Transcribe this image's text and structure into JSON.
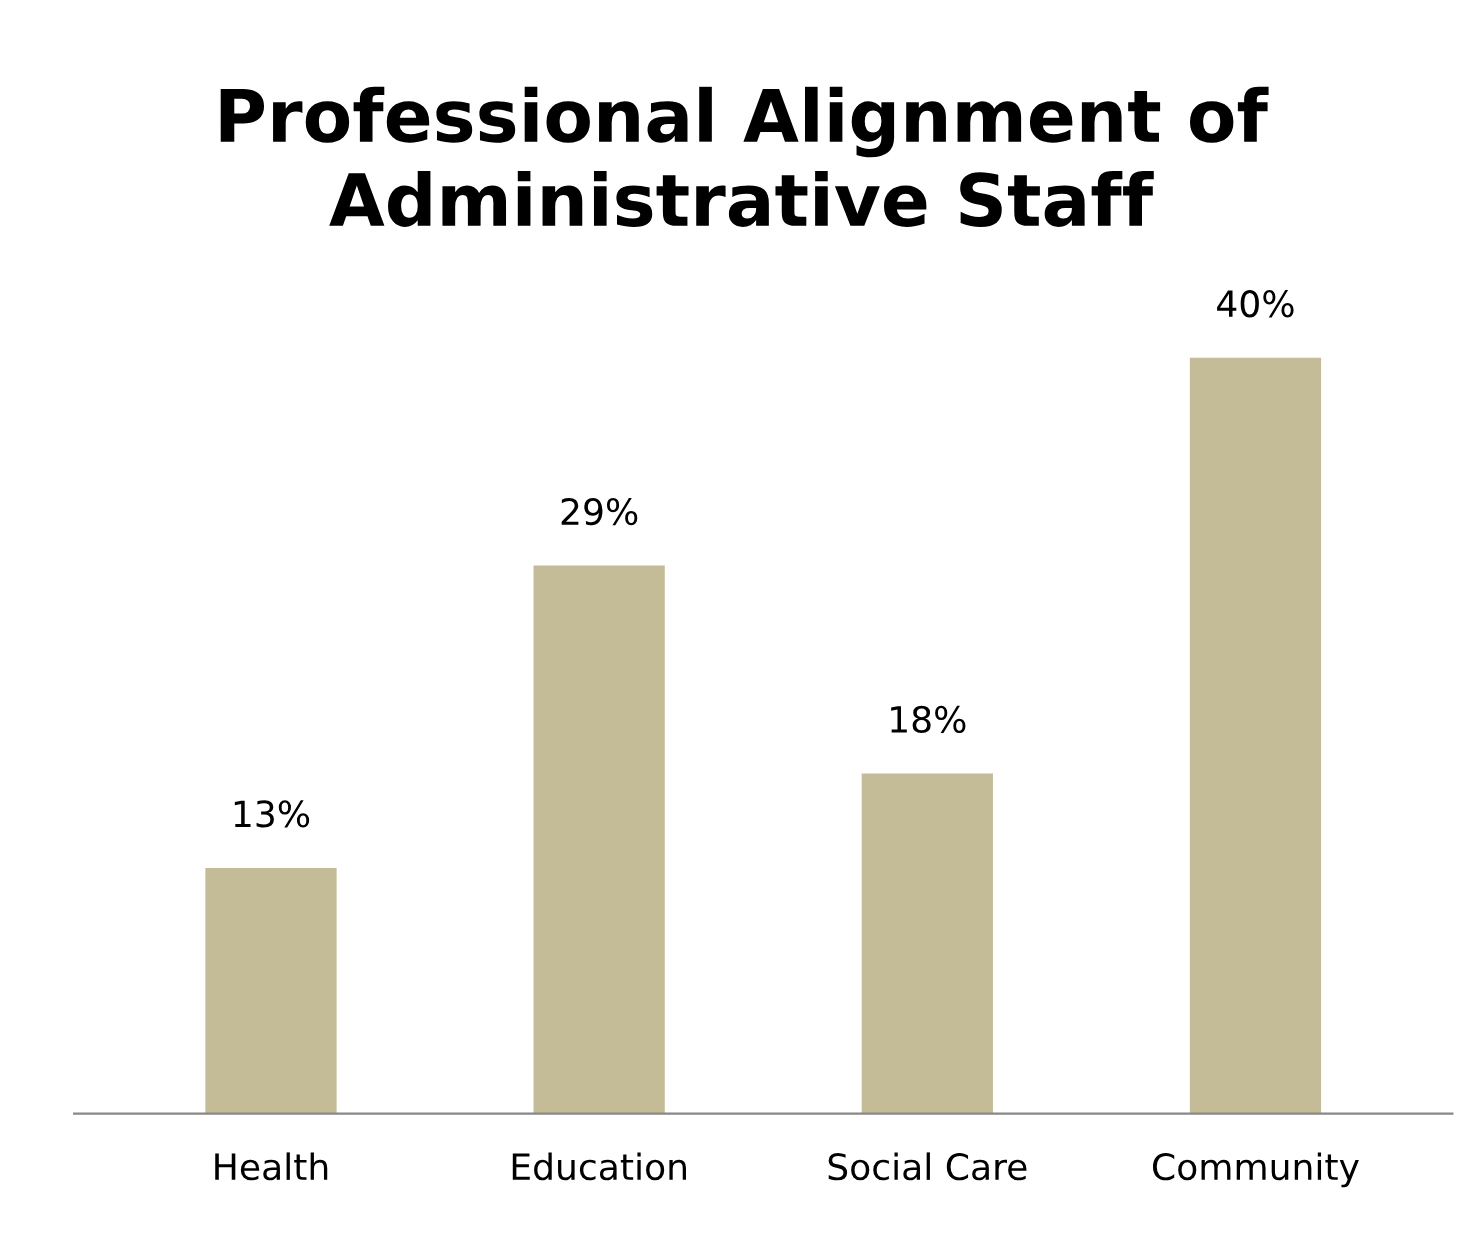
{
  "chart_data": {
    "type": "bar",
    "title": "Professional Alignment of\nAdministrative Staff",
    "categories": [
      "Health",
      "Education",
      "Social Care",
      "Community"
    ],
    "values": [
      13,
      29,
      18,
      40
    ],
    "value_labels": [
      "13%",
      "29%",
      "18%",
      "40%"
    ],
    "color": "#c4bc96",
    "grid": false,
    "legend": false
  }
}
